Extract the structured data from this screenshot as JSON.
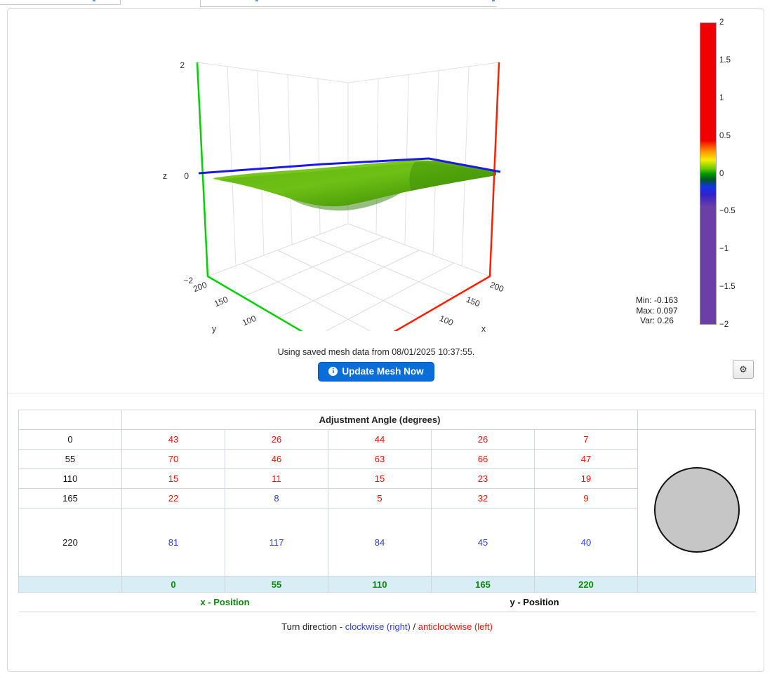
{
  "plot": {
    "z_axis_label": "z",
    "y_axis_label": "y",
    "x_axis_label": "x",
    "z_ticks": [
      "2",
      "0",
      "−2"
    ],
    "y_ticks": [
      "200",
      "150",
      "100"
    ],
    "x_ticks": [
      "200",
      "150",
      "100"
    ],
    "colorbar_ticks": [
      "2",
      "1.5",
      "1",
      "0.5",
      "0",
      "−0.5",
      "−1",
      "−1.5",
      "−2"
    ],
    "stats": {
      "min": "Min: -0.163",
      "max": "Max: 0.097",
      "var": "Var: 0.26"
    },
    "status_text": "Using saved mesh data from 08/01/2025 10:37:55.",
    "update_button_label": "Update Mesh Now",
    "info_icon_glyph": "i",
    "gear_icon_glyph": "⚙"
  },
  "table": {
    "title": "Adjustment Angle (degrees)",
    "col_labels": [
      "0",
      "55",
      "110",
      "165",
      "220"
    ],
    "rows": [
      {
        "label": "0",
        "cells": [
          {
            "v": "43",
            "dir": "acw"
          },
          {
            "v": "26",
            "dir": "acw"
          },
          {
            "v": "44",
            "dir": "acw"
          },
          {
            "v": "26",
            "dir": "acw"
          },
          {
            "v": "7",
            "dir": "acw"
          }
        ]
      },
      {
        "label": "55",
        "cells": [
          {
            "v": "70",
            "dir": "acw"
          },
          {
            "v": "46",
            "dir": "acw"
          },
          {
            "v": "63",
            "dir": "acw"
          },
          {
            "v": "66",
            "dir": "acw"
          },
          {
            "v": "47",
            "dir": "acw"
          }
        ]
      },
      {
        "label": "110",
        "cells": [
          {
            "v": "15",
            "dir": "acw"
          },
          {
            "v": "11",
            "dir": "acw"
          },
          {
            "v": "15",
            "dir": "acw"
          },
          {
            "v": "23",
            "dir": "acw"
          },
          {
            "v": "19",
            "dir": "acw"
          }
        ]
      },
      {
        "label": "165",
        "cells": [
          {
            "v": "22",
            "dir": "acw"
          },
          {
            "v": "8",
            "dir": "cw"
          },
          {
            "v": "5",
            "dir": "acw"
          },
          {
            "v": "32",
            "dir": "acw"
          },
          {
            "v": "9",
            "dir": "acw"
          }
        ]
      },
      {
        "label": "220",
        "tall": true,
        "cells": [
          {
            "v": "81",
            "dir": "cw"
          },
          {
            "v": "117",
            "dir": "cw"
          },
          {
            "v": "84",
            "dir": "cw"
          },
          {
            "v": "45",
            "dir": "cw"
          },
          {
            "v": "40",
            "dir": "cw"
          }
        ]
      }
    ],
    "x_axis_footer_label": "x - Position",
    "y_axis_footer_label": "y - Position",
    "turn_direction": {
      "prefix": "Turn direction - ",
      "clockwise_label": "clockwise (right)",
      "separator": " / ",
      "anticlockwise_label": "anticlockwise (left)"
    }
  },
  "colors": {
    "clockwise_blue": "#2d3be0",
    "anticlockwise_red": "#f51000",
    "footer_green": "#0a8a0a",
    "header_bg_blue": "#d9edf7",
    "button_blue": "#0b6dd8",
    "axis_green": "#00d200",
    "axis_red": "#ff1e00",
    "zero_line_blue": "#1a1ae6",
    "surface_green": "#57a80c"
  }
}
